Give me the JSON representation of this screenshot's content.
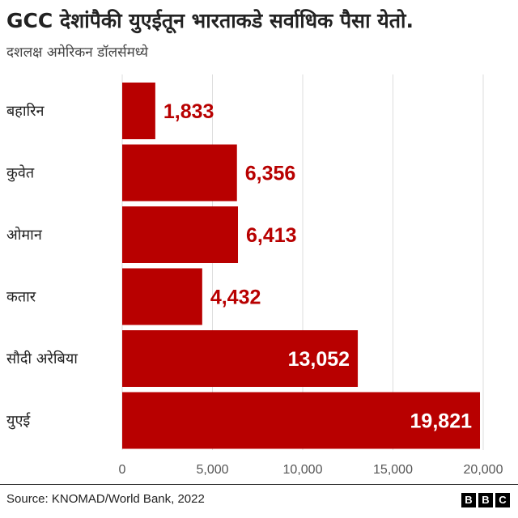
{
  "title": "GCC देशांपैकी युएईतून भारताकडे सर्वाधिक पैसा येतो.",
  "subtitle": "दशलक्ष अमेरिकन डॉलर्समध्ये",
  "source": "Source: KNOMAD/World Bank, 2022",
  "logo": [
    "B",
    "B",
    "C"
  ],
  "chart_data": {
    "type": "bar",
    "orientation": "horizontal",
    "categories": [
      "बहारिन",
      "कुवेत",
      "ओमान",
      "कतार",
      "सौदी अरेबिया",
      "युएई"
    ],
    "values": [
      1833,
      6356,
      6413,
      4432,
      13052,
      19821
    ],
    "value_labels": [
      "1,833",
      "6,356",
      "6,413",
      "4,432",
      "13,052",
      "19,821"
    ],
    "xlim": [
      0,
      20000
    ],
    "xticks": [
      0,
      5000,
      10000,
      15000,
      20000
    ],
    "xtick_labels": [
      "0",
      "5,000",
      "10,000",
      "15,000",
      "20,000"
    ],
    "grid": true,
    "colors": {
      "bar": "#b80000",
      "label_outside": "#b80000",
      "label_inside": "#ffffff",
      "grid": "#dddddd",
      "axis_text": "#555555"
    }
  }
}
